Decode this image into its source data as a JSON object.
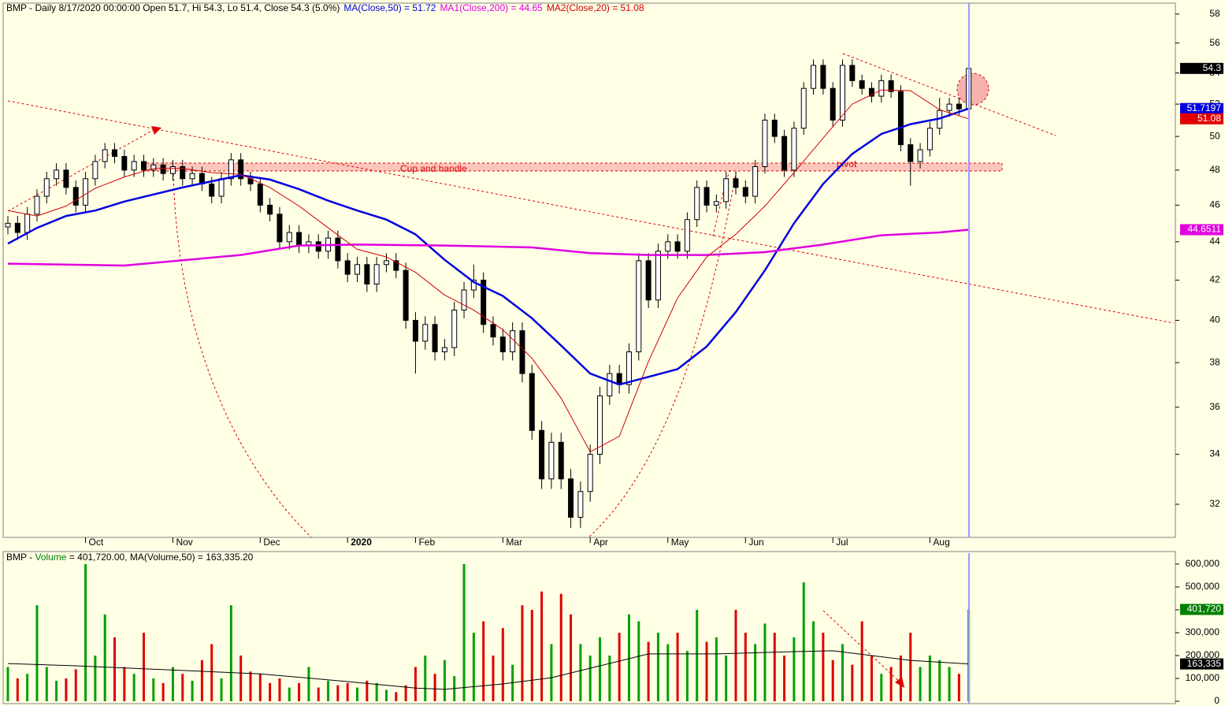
{
  "chart_data": [
    {
      "type": "candlestick",
      "title": "BMP - Daily 8/17/2020 00:00:00 Open 51.7, Hi 54.3, Lo 51.4, Close 54.3 (5.0%)",
      "categories": [
        null,
        null,
        null,
        null,
        null,
        null,
        null,
        null,
        "Oct",
        null,
        null,
        null,
        null,
        null,
        null,
        null,
        null,
        "Nov",
        null,
        null,
        null,
        null,
        null,
        null,
        null,
        null,
        "Dec",
        null,
        null,
        null,
        null,
        null,
        null,
        null,
        null,
        "2020",
        null,
        null,
        null,
        null,
        null,
        null,
        "Feb",
        null,
        null,
        null,
        null,
        null,
        null,
        null,
        null,
        "Mar",
        null,
        null,
        null,
        null,
        null,
        null,
        null,
        null,
        "Apr",
        null,
        null,
        null,
        null,
        null,
        null,
        null,
        "May",
        null,
        null,
        null,
        null,
        null,
        null,
        null,
        "Jun",
        null,
        null,
        null,
        null,
        null,
        null,
        null,
        null,
        "Jul",
        null,
        null,
        null,
        null,
        null,
        null,
        null,
        null,
        null,
        "Aug",
        null,
        null,
        null,
        null
      ],
      "open": [
        44.8,
        45,
        44.5,
        45.5,
        46.5,
        47.5,
        48,
        47,
        46,
        47.5,
        48.5,
        49.2,
        48.8,
        48,
        48.5,
        48,
        48.3,
        47.8,
        48.2,
        47.5,
        47.8,
        47.2,
        46.5,
        47.5,
        48.6,
        47.5,
        47.2,
        46,
        45.5,
        44,
        44.5,
        43.8,
        44,
        43.5,
        44.2,
        43,
        42.3,
        42.8,
        41.8,
        42.8,
        43,
        42.5,
        40,
        39,
        39.8,
        38.5,
        38.7,
        40.5,
        41.5,
        42,
        39.8,
        39.2,
        38.5,
        39.5,
        37.5,
        35,
        33,
        34.5,
        33,
        31.5,
        32.5,
        34,
        36.5,
        37.5,
        37,
        38.5,
        43,
        41,
        43.5,
        44,
        43.5,
        45.2,
        47,
        46,
        46.2,
        47.5,
        47,
        46.5,
        48.2,
        51,
        50,
        48,
        50.5,
        53,
        54.5,
        53,
        51,
        54.5,
        53.5,
        53,
        52.5,
        53.5,
        52.8,
        49.5,
        48.5,
        49.2,
        50.5,
        51.6,
        52,
        51.7
      ],
      "high": [
        45.4,
        45.4,
        45.9,
        46.9,
        47.9,
        48.4,
        48.4,
        47.4,
        47.9,
        48.9,
        49.6,
        49.6,
        49.2,
        48.9,
        48.9,
        48.7,
        48.7,
        48.6,
        48.6,
        48.2,
        48.2,
        47.6,
        47.9,
        49,
        49,
        47.9,
        47.6,
        46.4,
        45.9,
        44.9,
        44.9,
        44.4,
        44.4,
        44.6,
        44.6,
        43.4,
        43.2,
        43.2,
        43.2,
        43.4,
        43.4,
        42.9,
        40.4,
        40.2,
        40.2,
        39.1,
        40.9,
        41.9,
        42.8,
        42.4,
        40.2,
        39.6,
        39.9,
        39.9,
        37.9,
        35.4,
        34.9,
        34.9,
        33.4,
        32.9,
        34.4,
        36.9,
        37.9,
        37.9,
        38.9,
        43.4,
        43.4,
        43.9,
        44.4,
        44.4,
        45.6,
        47.4,
        47.4,
        46.6,
        47.9,
        47.9,
        47.4,
        48.6,
        51.4,
        51.4,
        50.4,
        50.9,
        53.4,
        54.9,
        54.9,
        53.4,
        54.9,
        54.9,
        53.9,
        53.4,
        53.9,
        53.9,
        53.2,
        49.9,
        49.6,
        50.9,
        52.4,
        52.4,
        52.4,
        54.3
      ],
      "low": [
        44.4,
        44.1,
        44.1,
        45.1,
        46.1,
        47.1,
        46.6,
        45.6,
        45.6,
        47.1,
        48.1,
        48.4,
        47.6,
        47.6,
        47.6,
        47.6,
        47.4,
        47.4,
        47.1,
        47.1,
        46.8,
        46.1,
        46.1,
        47.1,
        47.1,
        46.8,
        45.6,
        45.1,
        43.6,
        43.6,
        43.4,
        43.4,
        43.1,
        43.1,
        42.6,
        41.9,
        41.9,
        41.4,
        41.4,
        42.4,
        42.1,
        39.6,
        37.5,
        38.6,
        38.1,
        38.1,
        38.3,
        40.1,
        41.1,
        39.4,
        38.8,
        38.1,
        38.1,
        37.1,
        34.6,
        32.6,
        32.6,
        32.6,
        31.1,
        31.1,
        32.1,
        33.6,
        36.1,
        36.6,
        36.6,
        38.1,
        40.6,
        40.6,
        43.1,
        43.1,
        43.1,
        44.8,
        45.6,
        45.6,
        45.8,
        46.6,
        46.1,
        46.1,
        47.8,
        49.6,
        47.6,
        47.6,
        50.1,
        52.6,
        52.6,
        50.6,
        50.6,
        53.1,
        52.6,
        52.1,
        52.1,
        52.4,
        49.1,
        47.1,
        48.1,
        48.8,
        50.1,
        51.2,
        51.3,
        51.4
      ],
      "close": [
        45,
        44.5,
        45.5,
        46.5,
        47.5,
        48,
        47,
        46,
        47.5,
        48.5,
        49.2,
        48.8,
        48,
        48.5,
        48,
        48.3,
        47.8,
        48.2,
        47.5,
        47.8,
        47.2,
        46.5,
        47.5,
        48.6,
        47.5,
        47.2,
        46,
        45.5,
        44,
        44.5,
        43.8,
        44,
        43.5,
        44.2,
        43,
        42.3,
        42.8,
        41.8,
        42.8,
        43,
        42.5,
        40,
        39,
        39.8,
        38.5,
        38.7,
        40.5,
        41.5,
        42,
        39.8,
        39.2,
        38.5,
        39.5,
        37.5,
        35,
        33,
        34.5,
        33,
        31.5,
        32.5,
        34,
        36.5,
        37.5,
        37,
        38.5,
        43,
        41,
        43.5,
        44,
        43.5,
        45.2,
        47,
        46,
        46.2,
        47.5,
        47,
        46.5,
        48.2,
        51,
        50,
        48,
        50.5,
        53,
        54.5,
        53,
        51,
        54.5,
        53.5,
        53,
        52.5,
        53.5,
        52.8,
        49.5,
        48.5,
        49.2,
        50.5,
        51.6,
        52,
        51.7,
        54.3
      ],
      "up_color": "#ffffff",
      "down_color": "#000000",
      "log": true,
      "ylim": [
        30.74,
        59.0
      ],
      "yticks": [
        32,
        34,
        36,
        38,
        40,
        42,
        44,
        46,
        48,
        50,
        52,
        54,
        56,
        58
      ],
      "lines": [
        {
          "name": "MA(Close,50) = 51.72",
          "color": "#0000e0",
          "width": 2.5,
          "x": [
            0,
            3,
            6,
            9,
            12,
            15,
            18,
            21,
            24,
            27,
            30,
            33,
            36,
            39,
            42,
            45,
            48,
            51,
            54,
            57,
            60,
            63,
            66,
            69,
            72,
            75,
            78,
            81,
            84,
            87,
            90,
            93,
            96,
            99
          ],
          "values": [
            43.9,
            44.75,
            45.4,
            45.7,
            46.2,
            46.6,
            47.0,
            47.35,
            47.7,
            47.45,
            46.9,
            46.25,
            45.7,
            45.2,
            44.4,
            43.05,
            41.9,
            41.2,
            40.1,
            38.8,
            37.5,
            37.0,
            37.35,
            37.7,
            38.75,
            40.4,
            42.5,
            45.0,
            47.2,
            48.95,
            50.15,
            50.75,
            51.1,
            51.72
          ]
        },
        {
          "name": "MA1(Close,200) = 44.65",
          "color": "#e000e0",
          "width": 2.5,
          "x": [
            0,
            12,
            24,
            30,
            36,
            45,
            54,
            60,
            66,
            72,
            78,
            84,
            90,
            96,
            99
          ],
          "values": [
            42.85,
            42.75,
            43.3,
            43.8,
            43.85,
            43.8,
            43.7,
            43.4,
            43.3,
            43.3,
            43.45,
            43.85,
            44.35,
            44.5,
            44.65
          ]
        },
        {
          "name": "MA2(Close,20) = 51.08",
          "color": "#d00000",
          "width": 1,
          "x": [
            0,
            3,
            6,
            9,
            12,
            15,
            18,
            21,
            24,
            27,
            30,
            33,
            36,
            39,
            42,
            45,
            48,
            51,
            54,
            57,
            60,
            63,
            66,
            69,
            72,
            75,
            78,
            81,
            84,
            87,
            90,
            93,
            96,
            99
          ],
          "values": [
            45.7,
            45.4,
            45.95,
            46.95,
            47.6,
            48.1,
            48.1,
            47.85,
            47.75,
            47.0,
            45.95,
            44.75,
            43.6,
            43.2,
            42.4,
            41.25,
            40.5,
            39.55,
            38.2,
            36.4,
            34.1,
            34.75,
            38.05,
            41.1,
            43.2,
            44.4,
            45.95,
            47.85,
            49.9,
            52.0,
            52.9,
            52.85,
            51.65,
            51.08
          ]
        }
      ],
      "badges": [
        {
          "label": "54.3",
          "value": 54.3,
          "color": "#000000"
        },
        {
          "label": "51.7197",
          "value": 51.7197,
          "color": "#0000e0"
        },
        {
          "label": "51.08",
          "value": 51.08,
          "color": "#e00000"
        },
        {
          "label": "44.6511",
          "value": 44.6511,
          "color": "#e000e0"
        }
      ],
      "annotations": [
        "Cup and handle",
        "pivot"
      ]
    },
    {
      "type": "bar",
      "title": "BMP - ",
      "subtitle": " = 401,720.00, MA(Volume,50) = 163,335.20",
      "series": [
        {
          "name": "Volume",
          "color": "#008000",
          "values": [
            150000,
            100000,
            120000,
            420000,
            150000,
            90000,
            100000,
            140000,
            600000,
            200000,
            380000,
            280000,
            150000,
            120000,
            300000,
            100000,
            80000,
            150000,
            120000,
            90000,
            180000,
            250000,
            100000,
            420000,
            200000,
            130000,
            120000,
            80000,
            100000,
            60000,
            80000,
            150000,
            60000,
            90000,
            70000,
            80000,
            60000,
            90000,
            80000,
            50000,
            40000,
            70000,
            150000,
            200000,
            120000,
            180000,
            110000,
            600000,
            300000,
            350000,
            200000,
            320000,
            160000,
            420000,
            400000,
            480000,
            250000,
            470000,
            380000,
            250000,
            200000,
            280000,
            200000,
            300000,
            380000,
            350000,
            260000,
            300000,
            250000,
            300000,
            220000,
            400000,
            260000,
            280000,
            200000,
            400000,
            300000,
            250000,
            340000,
            300000,
            200000,
            280000,
            520000,
            350000,
            300000,
            180000,
            250000,
            160000,
            350000,
            200000,
            120000,
            150000,
            200000,
            300000,
            150000,
            200000,
            180000,
            150000,
            120000,
            401720
          ]
        }
      ],
      "up_color": "#00a000",
      "down_color": "#e00000",
      "ylim": [
        0,
        648000
      ],
      "yticks": [
        0,
        {
          "value": 100000,
          "label": "100,000"
        },
        {
          "value": 200000,
          "label": "200,000"
        },
        {
          "value": 300000,
          "label": "300,000"
        },
        {
          "value": 400000,
          "label": "400,000"
        },
        {
          "value": 500000,
          "label": "500,000"
        },
        {
          "value": 600000,
          "label": "600,000"
        }
      ],
      "lines": [
        {
          "color": "#000000",
          "width": 1,
          "x": [
            0,
            7,
            26,
            35,
            42,
            45,
            51,
            56,
            61,
            66,
            73,
            81,
            85,
            89,
            93,
            99
          ],
          "values": [
            165000,
            155000,
            120000,
            86000,
            58000,
            52000,
            76000,
            103000,
            155000,
            207000,
            207000,
            217000,
            221000,
            200000,
            179000,
            163335.2
          ]
        }
      ],
      "badges": [
        {
          "label": "401,720",
          "value": 401720,
          "color": "#008000"
        },
        {
          "label": "163,335",
          "value": 163335,
          "color": "#000000"
        }
      ]
    }
  ]
}
